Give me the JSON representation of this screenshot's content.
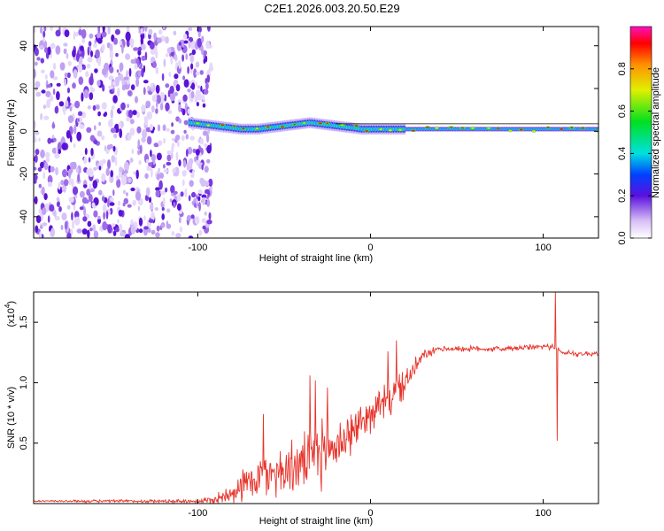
{
  "title": "C2E1.2026.003.20.50.E29",
  "chart_data": [
    {
      "type": "heatmap",
      "name": "spectrogram",
      "xlabel": "Height of straight line (km)",
      "ylabel": "Frequency (Hz)",
      "xlim": [
        -195,
        132
      ],
      "ylim": [
        -50,
        49
      ],
      "xticks": [
        -100,
        0,
        100
      ],
      "xtick_labels": [
        "-100",
        "0",
        "100"
      ],
      "yticks": [
        -40,
        -20,
        0,
        20,
        40
      ],
      "ytick_labels": [
        "-40",
        "-20",
        "0",
        "20",
        "40"
      ],
      "noise_region_x": [
        -195,
        -92
      ],
      "signal_track": {
        "x": [
          -105,
          -95,
          -85,
          -75,
          -65,
          -55,
          -45,
          -35,
          -25,
          -15,
          -5,
          5,
          15,
          25,
          35,
          50,
          70,
          90,
          105,
          115,
          132
        ],
        "freq": [
          4,
          3,
          2,
          1,
          1,
          2,
          3,
          4,
          3,
          2,
          1,
          1,
          1,
          1,
          1,
          1,
          1,
          1,
          1,
          1,
          1
        ]
      },
      "colorbar": {
        "label": "Normalized spectral amplitude",
        "range": [
          0,
          1
        ],
        "ticks": [
          0.0,
          0.2,
          0.4,
          0.6,
          0.8
        ],
        "tick_labels": [
          "0.0",
          "0.2",
          "0.4",
          "0.6",
          "0.8"
        ]
      }
    },
    {
      "type": "line",
      "name": "snr",
      "xlabel": "Height of straight line (km)",
      "ylabel": "SNR (10 * v/v)",
      "exponent_label": "(x10",
      "exponent_power": "4",
      "xlim": [
        -195,
        132
      ],
      "ylim": [
        0,
        1.75
      ],
      "xticks": [
        -100,
        0,
        100
      ],
      "xtick_labels": [
        "-100",
        "0",
        "100"
      ],
      "yticks": [
        0.5,
        1.0,
        1.5
      ],
      "ytick_labels": [
        "0.5",
        "1.0",
        "1.5"
      ],
      "color": "#e8332a",
      "trend": {
        "x": [
          -195,
          -150,
          -100,
          -90,
          -80,
          -70,
          -60,
          -50,
          -40,
          -30,
          -20,
          -10,
          0,
          10,
          20,
          25,
          30,
          40,
          60,
          80,
          100,
          103,
          106,
          108,
          110,
          120,
          132
        ],
        "y": [
          0.02,
          0.02,
          0.02,
          0.03,
          0.1,
          0.18,
          0.25,
          0.28,
          0.32,
          0.4,
          0.48,
          0.6,
          0.75,
          0.85,
          1.0,
          1.1,
          1.22,
          1.28,
          1.28,
          1.28,
          1.3,
          1.3,
          1.3,
          1.28,
          1.25,
          1.24,
          1.24
        ]
      },
      "noise_amplitude": {
        "x": [
          -195,
          -100,
          -85,
          -70,
          -60,
          -40,
          -30,
          -20,
          -10,
          0,
          10,
          20,
          30,
          40,
          132
        ],
        "y": [
          0.01,
          0.02,
          0.08,
          0.2,
          0.25,
          0.28,
          0.35,
          0.3,
          0.22,
          0.18,
          0.2,
          0.15,
          0.06,
          0.03,
          0.03
        ]
      },
      "spikes": [
        {
          "x": -62,
          "y": 0.74
        },
        {
          "x": -35,
          "y": 1.06
        },
        {
          "x": -32,
          "y": 1.02
        },
        {
          "x": -25,
          "y": 0.96
        },
        {
          "x": 10,
          "y": 1.26
        },
        {
          "x": 15,
          "y": 1.35
        },
        {
          "x": 107,
          "y": 1.75
        },
        {
          "x": 108,
          "y": 0.52
        }
      ]
    }
  ]
}
